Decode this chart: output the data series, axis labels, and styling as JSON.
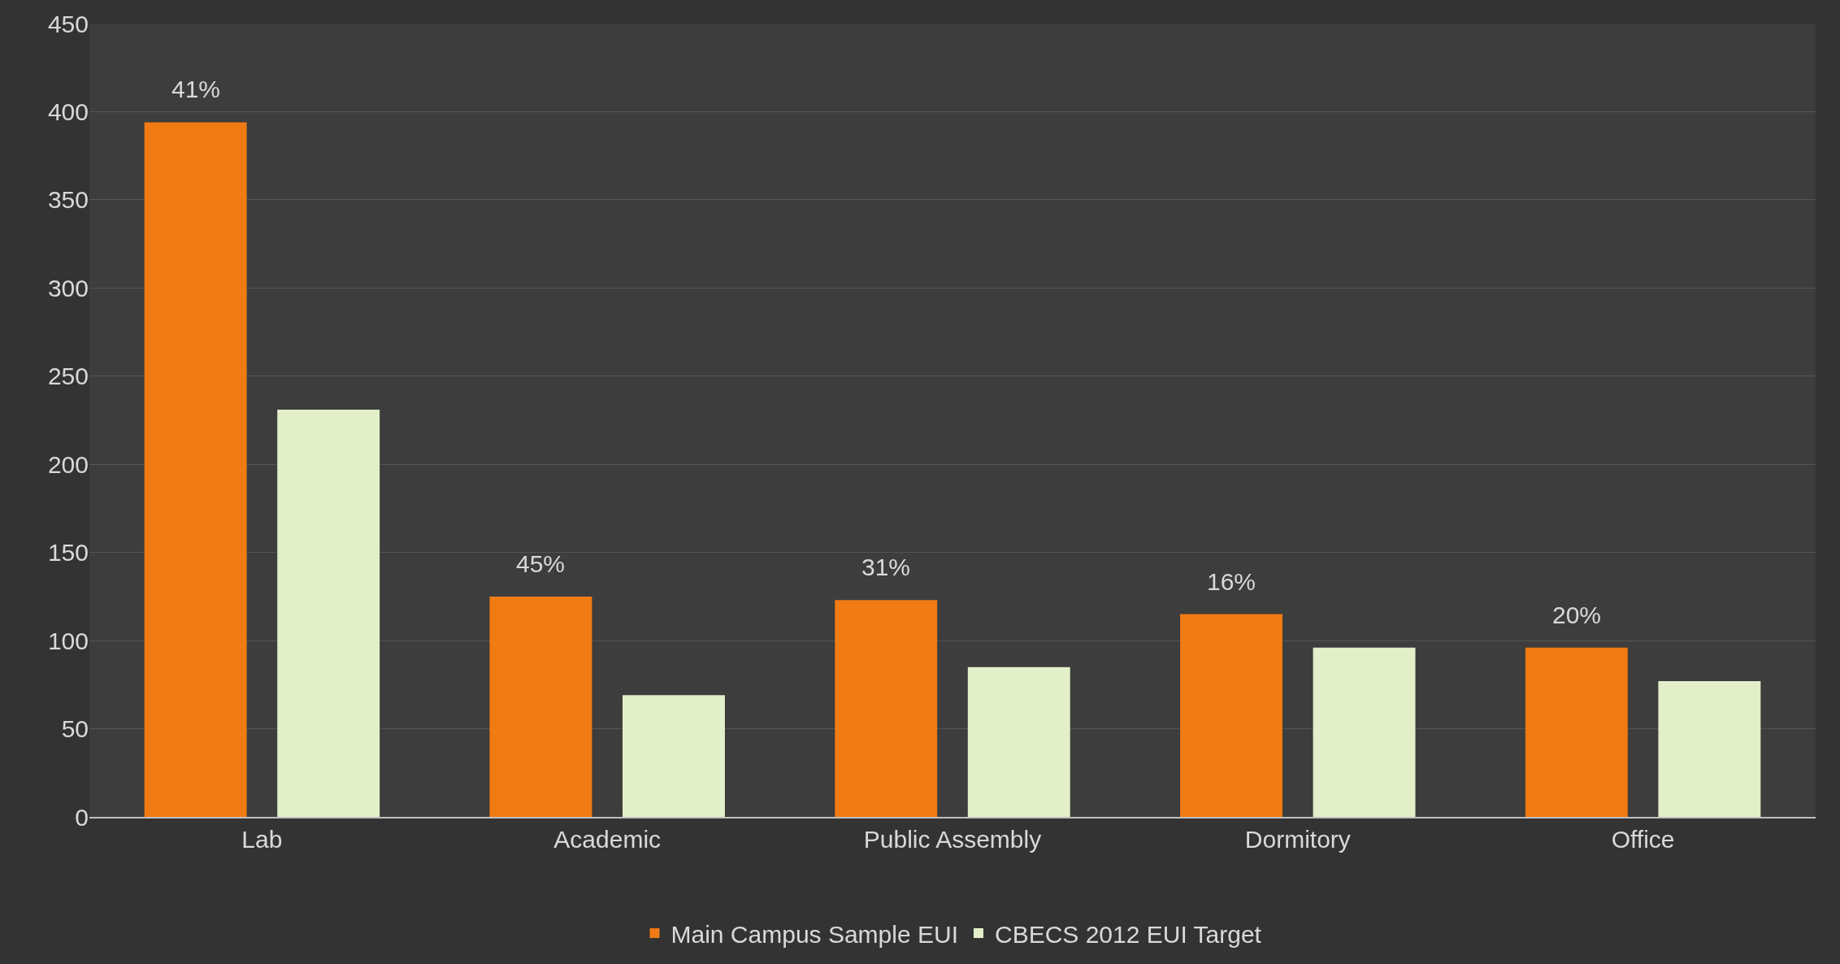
{
  "chart_data": {
    "type": "bar",
    "categories": [
      "Lab",
      "Academic",
      "Public Assembly",
      "Dormitory",
      "Office"
    ],
    "series": [
      {
        "name": "Main Campus Sample EUI",
        "color": "#f07b13",
        "values": [
          394,
          125,
          123,
          115,
          96
        ]
      },
      {
        "name": "CBECS 2012 EUI Target",
        "color": "#e2efc9",
        "values": [
          231,
          69,
          85,
          96,
          77
        ]
      }
    ],
    "annotations": [
      "41%",
      "45%",
      "31%",
      "16%",
      "20%"
    ],
    "ylim": [
      0,
      450
    ],
    "yticks": [
      0,
      50,
      100,
      150,
      200,
      250,
      300,
      350,
      400,
      450
    ],
    "grid": "y",
    "legend": "bottom"
  }
}
